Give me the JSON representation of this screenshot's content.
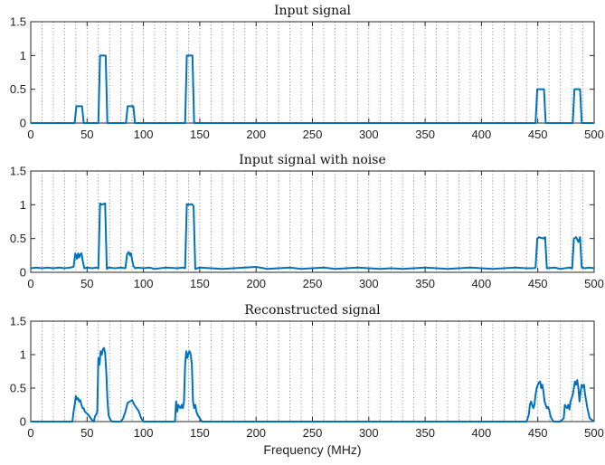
{
  "chart_data": [
    {
      "type": "line",
      "title": "Input signal",
      "xlabel": "",
      "ylabel": "",
      "xlim": [
        0,
        500
      ],
      "ylim": [
        0,
        1.5
      ],
      "xticks": [
        0,
        50,
        100,
        150,
        200,
        250,
        300,
        350,
        400,
        450,
        500
      ],
      "xtick_labels": [
        "0",
        "50",
        "100",
        "150",
        "200",
        "250",
        "300",
        "350",
        "400",
        "450",
        "500"
      ],
      "yticks": [
        0,
        0.5,
        1,
        1.5
      ],
      "ytick_labels": [
        "0",
        "0.5",
        "1",
        "1.5"
      ],
      "grid_x": "dotted-vertical every 10 MHz",
      "series_color": "#0072BD",
      "series": [
        {
          "x": [
            0,
            39,
            40.5,
            45.5,
            47,
            60,
            61.5,
            66.5,
            68,
            84.5,
            86,
            91,
            92.5,
            137,
            138.5,
            143.5,
            145,
            448,
            449.5,
            455.5,
            457,
            481,
            482.5,
            487.5,
            489,
            500
          ],
          "values": [
            0,
            0,
            0.25,
            0.25,
            0,
            0,
            1,
            1,
            0,
            0,
            0.25,
            0.25,
            0,
            0,
            1,
            1,
            0,
            0,
            0.5,
            0.5,
            0,
            0,
            0.5,
            0.5,
            0,
            0
          ]
        }
      ]
    },
    {
      "type": "line",
      "title": "Input signal with noise",
      "xlabel": "",
      "ylabel": "",
      "xlim": [
        0,
        500
      ],
      "ylim": [
        0,
        1.5
      ],
      "xticks": [
        0,
        50,
        100,
        150,
        200,
        250,
        300,
        350,
        400,
        450,
        500
      ],
      "xtick_labels": [
        "0",
        "50",
        "100",
        "150",
        "200",
        "250",
        "300",
        "350",
        "400",
        "450",
        "500"
      ],
      "yticks": [
        0,
        0.5,
        1,
        1.5
      ],
      "ytick_labels": [
        "0",
        "0.5",
        "1",
        "1.5"
      ],
      "grid_x": "dotted-vertical every 10 MHz",
      "series_color": "#0072BD",
      "series": [
        {
          "x": [
            0,
            5,
            10,
            15,
            20,
            25,
            30,
            35,
            38,
            39.5,
            41,
            42,
            43,
            44,
            45,
            46,
            47.5,
            50,
            55,
            58,
            60,
            61.5,
            63,
            66,
            67.5,
            69,
            75,
            80,
            84,
            85.5,
            87,
            88,
            89,
            90,
            91,
            92.5,
            95,
            100,
            105,
            110,
            120,
            130,
            135,
            137,
            138.5,
            140,
            143,
            144.5,
            146,
            150,
            160,
            170,
            180,
            190,
            200,
            210,
            220,
            230,
            240,
            250,
            260,
            270,
            280,
            290,
            300,
            310,
            320,
            330,
            340,
            350,
            360,
            370,
            380,
            390,
            400,
            410,
            420,
            430,
            440,
            446,
            448,
            449.5,
            451,
            455,
            456.5,
            458,
            465,
            470,
            478,
            480.5,
            482,
            484,
            486,
            487.5,
            489,
            492,
            495,
            500
          ],
          "values": [
            0.06,
            0.07,
            0.06,
            0.07,
            0.06,
            0.07,
            0.06,
            0.07,
            0.08,
            0.28,
            0.2,
            0.28,
            0.22,
            0.27,
            0.28,
            0.18,
            0.06,
            0.07,
            0.06,
            0.07,
            0.06,
            1.02,
            1,
            1.02,
            0.05,
            0.07,
            0.06,
            0.07,
            0.06,
            0.27,
            0.3,
            0.25,
            0.28,
            0.18,
            0.1,
            0.06,
            0.07,
            0.06,
            0.07,
            0.05,
            0.07,
            0.06,
            0.07,
            0.06,
            1.01,
            1,
            1.01,
            0.98,
            0.05,
            0.07,
            0.06,
            0.05,
            0.06,
            0.07,
            0.08,
            0.05,
            0.06,
            0.07,
            0.05,
            0.06,
            0.07,
            0.05,
            0.06,
            0.07,
            0.06,
            0.05,
            0.06,
            0.05,
            0.06,
            0.07,
            0.06,
            0.05,
            0.06,
            0.07,
            0.06,
            0.05,
            0.06,
            0.07,
            0.06,
            0.06,
            0.07,
            0.5,
            0.52,
            0.5,
            0.52,
            0.06,
            0.07,
            0.05,
            0.07,
            0.06,
            0.5,
            0.52,
            0.45,
            0.52,
            0.07,
            0.06,
            0.07,
            0.06
          ]
        }
      ]
    },
    {
      "type": "line",
      "title": "Reconstructed signal",
      "xlabel": "Frequency (MHz)",
      "ylabel": "",
      "xlim": [
        0,
        500
      ],
      "ylim": [
        0,
        1.5
      ],
      "xticks": [
        0,
        50,
        100,
        150,
        200,
        250,
        300,
        350,
        400,
        450,
        500
      ],
      "xtick_labels": [
        "0",
        "50",
        "100",
        "150",
        "200",
        "250",
        "300",
        "350",
        "400",
        "450",
        "500"
      ],
      "yticks": [
        0,
        0.5,
        1,
        1.5
      ],
      "ytick_labels": [
        "0",
        "0.5",
        "1",
        "1.5"
      ],
      "grid_x": "dotted-vertical every 10 MHz",
      "series_color": "#0072BD",
      "series": [
        {
          "x": [
            0,
            30,
            35,
            37,
            38,
            39,
            40,
            41,
            42,
            43,
            44,
            45,
            46,
            47,
            48,
            50,
            52,
            54,
            56,
            57,
            58,
            59,
            60,
            61,
            62,
            63,
            64,
            65,
            66,
            67,
            68,
            69,
            70,
            72,
            80,
            82,
            84,
            86,
            88,
            90,
            92,
            94,
            96,
            97,
            98,
            100,
            110,
            120,
            128,
            129,
            130,
            131,
            132,
            133,
            134,
            135,
            136,
            137,
            138,
            139,
            140,
            141,
            142,
            143,
            144,
            145,
            146,
            147,
            148,
            150,
            152,
            160,
            200,
            300,
            400,
            440,
            442,
            443,
            444,
            446,
            447,
            448,
            449,
            450,
            451,
            452,
            453,
            454,
            455,
            456,
            457,
            458,
            459,
            460,
            461,
            462,
            464,
            470,
            473,
            474,
            476,
            477,
            478,
            479,
            480,
            481,
            482,
            483,
            484,
            485,
            486,
            487,
            488,
            489,
            490,
            491,
            492,
            494,
            496,
            500
          ],
          "values": [
            0,
            0,
            0,
            0,
            0.15,
            0.25,
            0.38,
            0.33,
            0.35,
            0.3,
            0.32,
            0.25,
            0.2,
            0.2,
            0.15,
            0.12,
            0.08,
            0.03,
            0,
            0.08,
            0.1,
            0.15,
            0.95,
            0.85,
            1.05,
            1.0,
            1.08,
            1.1,
            1.02,
            0.75,
            0.35,
            0.1,
            0.05,
            0,
            0,
            0.05,
            0.15,
            0.28,
            0.3,
            0.32,
            0.25,
            0.2,
            0.15,
            0.1,
            0.05,
            0,
            0,
            0,
            0,
            0.3,
            0.15,
            0.25,
            0.22,
            0.2,
            0.25,
            0.2,
            0.3,
            0.85,
            1.05,
            0.95,
            1.02,
            1.05,
            1.0,
            0.85,
            0.3,
            0.2,
            0.25,
            0.15,
            0.1,
            0.05,
            0,
            0,
            0,
            0,
            0,
            0,
            0.1,
            0.25,
            0.3,
            0.2,
            0.25,
            0.4,
            0.5,
            0.55,
            0.58,
            0.6,
            0.5,
            0.55,
            0.45,
            0.3,
            0.25,
            0.2,
            0.22,
            0.18,
            0.1,
            0.05,
            0,
            0,
            0.05,
            0.25,
            0.2,
            0.25,
            0.18,
            0.3,
            0.35,
            0.4,
            0.5,
            0.6,
            0.55,
            0.62,
            0.5,
            0.3,
            0.45,
            0.55,
            0.52,
            0.55,
            0.4,
            0.2,
            0.05,
            0
          ]
        }
      ]
    }
  ]
}
